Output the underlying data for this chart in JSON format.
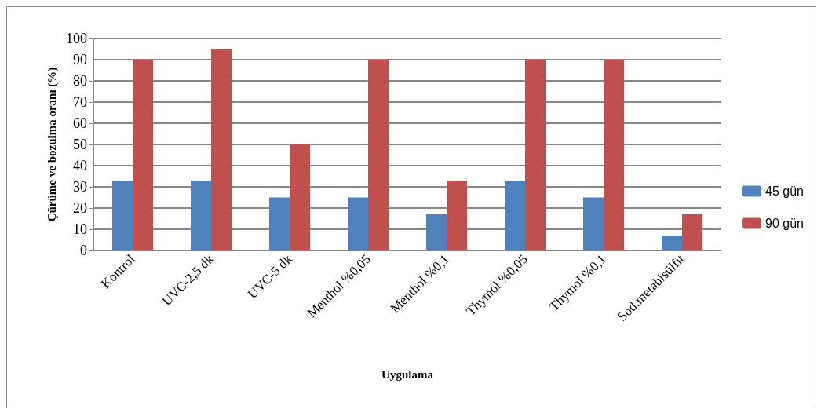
{
  "chart_data": {
    "type": "bar",
    "xlabel": "Uygulama",
    "ylabel": "Çürüme ve bozulma oranı (%)",
    "categories": [
      "Kontrol",
      "UVC-2,5 dk",
      "UVC-5 dk",
      "Menthol %0,05",
      "Menthol %0,1",
      "Thymol %0,05",
      "Thymol %0,1",
      "Sod.metabisülfit"
    ],
    "series": [
      {
        "name": "45 gün",
        "color": "#4f81bd",
        "values": [
          33,
          33,
          25,
          25,
          17,
          33,
          25,
          7
        ]
      },
      {
        "name": "90 gün",
        "color": "#c0504d",
        "values": [
          90,
          95,
          50,
          90,
          33,
          90,
          90,
          17
        ]
      }
    ],
    "ylim": [
      0,
      100
    ],
    "yticks": [
      0,
      10,
      20,
      30,
      40,
      50,
      60,
      70,
      80,
      90,
      100
    ],
    "grid": "y",
    "legend": "right"
  }
}
